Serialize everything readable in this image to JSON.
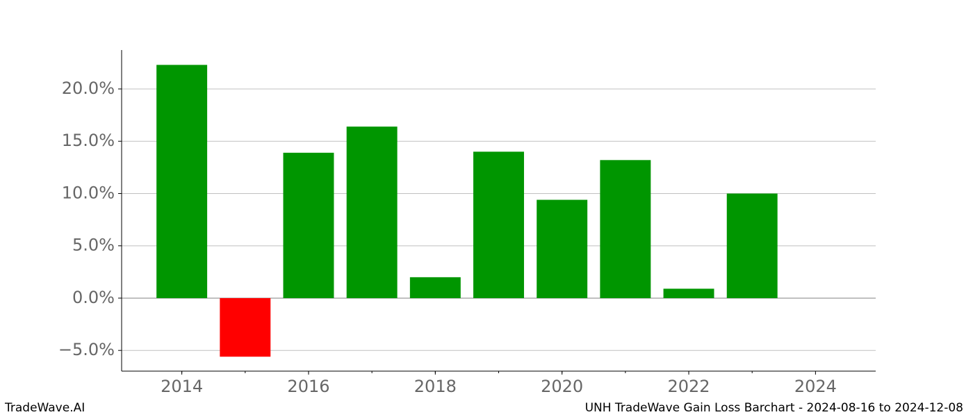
{
  "chart_data": {
    "type": "bar",
    "title": "UNH TradeWave Gain Loss Barchart - 2024-08-16 to 2024-12-08",
    "watermark": "TradeWave.AI",
    "x": [
      2014,
      2015,
      2016,
      2017,
      2018,
      2019,
      2020,
      2021,
      2022,
      2023
    ],
    "values": [
      22.3,
      -5.6,
      13.9,
      16.4,
      2.0,
      14.0,
      9.4,
      13.2,
      0.9,
      10.0
    ],
    "positive_color": "#009600",
    "negative_color": "#ff0000",
    "xlim": [
      2013.05,
      2024.95
    ],
    "xticks": [
      2014,
      2016,
      2018,
      2020,
      2022,
      2024
    ],
    "ylim": [
      -6.98,
      23.72
    ],
    "yticks": [
      {
        "value": -5,
        "label": "−5.0%"
      },
      {
        "value": 0,
        "label": "0.0%"
      },
      {
        "value": 5,
        "label": "5.0%"
      },
      {
        "value": 10,
        "label": "10.0%"
      },
      {
        "value": 15,
        "label": "15.0%"
      },
      {
        "value": 20,
        "label": "20.0%"
      }
    ],
    "grid": true
  }
}
